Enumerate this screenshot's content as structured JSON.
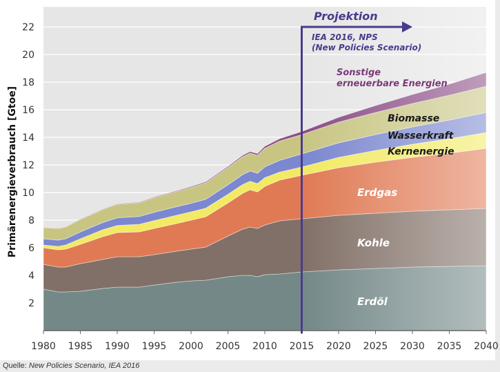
{
  "chart_data": {
    "type": "area",
    "stacked": true,
    "title": "",
    "xlabel": "",
    "ylabel": "Primärenergieverbrauch [Gtoe]",
    "xlim": [
      1980,
      2040
    ],
    "ylim": [
      0,
      23
    ],
    "x_ticks": [
      "1980",
      "1985",
      "1990",
      "1995",
      "2000",
      "2005",
      "2010",
      "2015",
      "2020",
      "2025",
      "2030",
      "2035",
      "2040"
    ],
    "y_ticks": [
      "2",
      "4",
      "6",
      "8",
      "10",
      "12",
      "14",
      "16",
      "18",
      "20",
      "22"
    ],
    "grid": true,
    "x": [
      1980,
      1982,
      1983,
      1985,
      1988,
      1990,
      1993,
      1995,
      1998,
      2000,
      2002,
      2005,
      2007,
      2008,
      2009,
      2010,
      2012,
      2015,
      2020,
      2025,
      2030,
      2035,
      2040
    ],
    "series": [
      {
        "name": "Erdöl",
        "label": "Erdöl",
        "color": "#748888",
        "values": [
          3.0,
          2.8,
          2.8,
          2.85,
          3.05,
          3.15,
          3.15,
          3.3,
          3.5,
          3.6,
          3.65,
          3.9,
          4.0,
          4.0,
          3.9,
          4.05,
          4.1,
          4.25,
          4.4,
          4.5,
          4.6,
          4.65,
          4.7
        ]
      },
      {
        "name": "Kohle",
        "label": "Kohle",
        "color": "#817067",
        "values": [
          1.8,
          1.8,
          1.8,
          2.0,
          2.1,
          2.2,
          2.2,
          2.2,
          2.25,
          2.3,
          2.4,
          2.95,
          3.35,
          3.5,
          3.5,
          3.6,
          3.85,
          3.85,
          3.95,
          4.0,
          4.05,
          4.1,
          4.15
        ]
      },
      {
        "name": "Erdgas",
        "label": "Erdgas",
        "color": "#e07a55",
        "values": [
          1.2,
          1.25,
          1.3,
          1.4,
          1.65,
          1.75,
          1.8,
          1.9,
          2.0,
          2.1,
          2.2,
          2.4,
          2.6,
          2.7,
          2.65,
          2.8,
          2.95,
          3.15,
          3.45,
          3.7,
          3.9,
          4.1,
          4.35
        ]
      },
      {
        "name": "Kernenergie",
        "label": "Kernenergie",
        "color": "#f2ea62",
        "values": [
          0.2,
          0.25,
          0.3,
          0.4,
          0.5,
          0.52,
          0.55,
          0.57,
          0.6,
          0.6,
          0.62,
          0.63,
          0.63,
          0.62,
          0.6,
          0.63,
          0.58,
          0.6,
          0.75,
          0.85,
          0.95,
          1.05,
          1.15
        ]
      },
      {
        "name": "Wasserkraft",
        "label": "Wasserkraft",
        "color": "#7b87cf",
        "values": [
          0.45,
          0.45,
          0.45,
          0.5,
          0.52,
          0.55,
          0.57,
          0.6,
          0.62,
          0.62,
          0.64,
          0.68,
          0.72,
          0.74,
          0.75,
          0.78,
          0.85,
          0.95,
          1.05,
          1.15,
          1.25,
          1.35,
          1.45
        ]
      },
      {
        "name": "Biomasse",
        "label": "Biomasse",
        "color": "#c8c583",
        "values": [
          0.8,
          0.85,
          0.85,
          0.9,
          0.95,
          0.98,
          1.0,
          1.05,
          1.1,
          1.15,
          1.2,
          1.25,
          1.3,
          1.3,
          1.3,
          1.35,
          1.4,
          1.4,
          1.5,
          1.6,
          1.7,
          1.8,
          1.9
        ]
      },
      {
        "name": "Sonstige erneuerbare Energien",
        "label": "Sonstige erneuerbare Energien",
        "color": "#8a4c86",
        "values": [
          0.02,
          0.02,
          0.02,
          0.03,
          0.03,
          0.04,
          0.04,
          0.05,
          0.05,
          0.06,
          0.07,
          0.08,
          0.1,
          0.11,
          0.12,
          0.14,
          0.17,
          0.22,
          0.35,
          0.5,
          0.65,
          0.8,
          1.0
        ]
      }
    ],
    "annotations": {
      "projection_start_year": 2015,
      "projection_title": "Projektion",
      "projection_line1": "IEA 2016, NPS",
      "projection_line2": "(New Policies Scenario)"
    }
  },
  "source": {
    "prefix": "Quelle: ",
    "text": "New Policies Scenario, IEA 2016"
  }
}
